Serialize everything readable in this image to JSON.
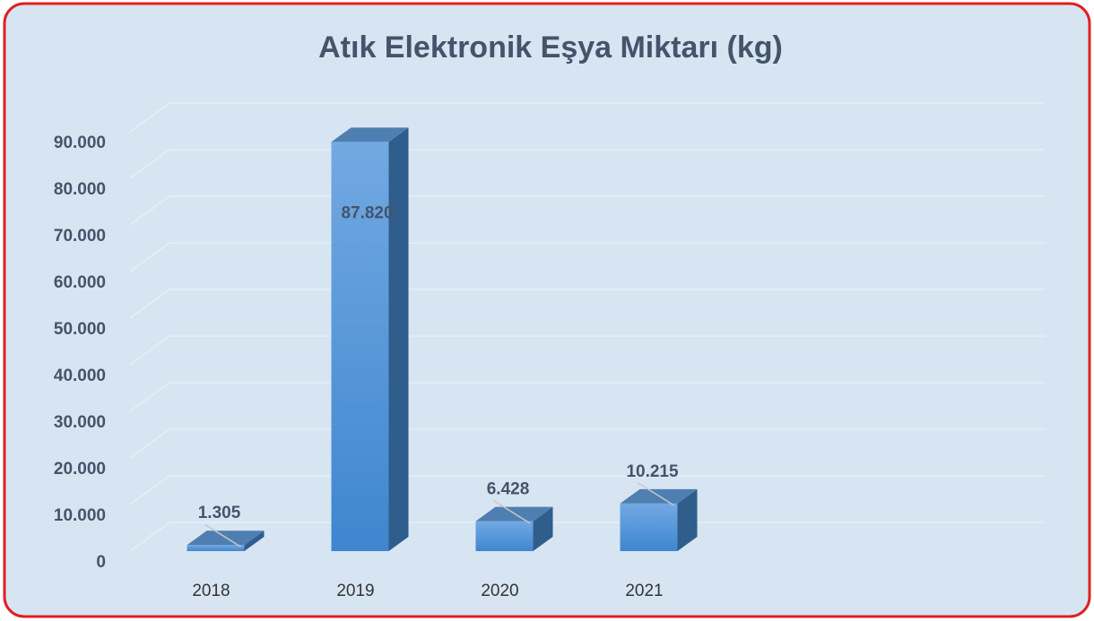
{
  "chart_data": {
    "type": "bar3d",
    "title": "Atık Elektronik Eşya Miktarı (kg)",
    "categories": [
      "2018",
      "2019",
      "2020",
      "2021"
    ],
    "values": [
      1305,
      87820,
      6428,
      10215
    ],
    "value_labels": [
      "1.305",
      "87.820",
      "6.428",
      "10.215"
    ],
    "color": "#4a8fd6",
    "ylim": [
      0,
      90000
    ],
    "yticks": [
      0,
      {
        "value": 10000,
        "label": "10.000"
      },
      {
        "value": 20000,
        "label": "20.000"
      },
      {
        "value": 30000,
        "label": "30.000"
      },
      {
        "value": 40000,
        "label": "40.000"
      },
      {
        "value": 50000,
        "label": "50.000"
      },
      {
        "value": 60000,
        "label": "60.000"
      },
      {
        "value": 70000,
        "label": "70.000"
      },
      {
        "value": 80000,
        "label": "80.000"
      },
      {
        "value": 90000,
        "label": "90.000"
      }
    ],
    "grid": true
  }
}
